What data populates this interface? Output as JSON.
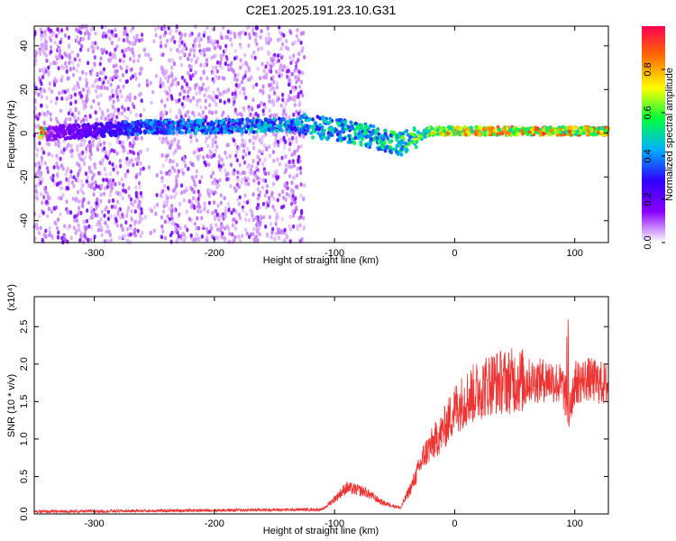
{
  "title": "C2E1.2025.191.23.10.G31",
  "chart_data": [
    {
      "type": "heatmap",
      "xlabel": "Height of straight line (km)",
      "ylabel": "Frequency (Hz)",
      "xlim": [
        -350,
        128
      ],
      "ylim": [
        -50,
        49
      ],
      "xticks": [
        -300,
        -200,
        -100,
        0,
        100
      ],
      "yticks": [
        -40,
        -20,
        0,
        20,
        40
      ],
      "colorbar": {
        "label": "Normalized spectral amplitude",
        "range": [
          0,
          1
        ],
        "ticks": [
          "0.0",
          "0.2",
          "0.4",
          "0.6",
          "0.8"
        ],
        "colors": [
          "#ffffff",
          "#8a00ff",
          "#2f00ff",
          "#00b0ff",
          "#00ff40",
          "#ffff00",
          "#ff7000",
          "#ff0050"
        ]
      },
      "description_of_trace": [
        {
          "x": -340,
          "y": 0,
          "amp": 0.15
        },
        {
          "x": -250,
          "y": 3,
          "amp": 0.45
        },
        {
          "x": -200,
          "y": 3,
          "amp": 0.45
        },
        {
          "x": -130,
          "y": 4,
          "amp": 0.5
        },
        {
          "x": -80,
          "y": 0,
          "amp": 0.55
        },
        {
          "x": -45,
          "y": -5,
          "amp": 0.6
        },
        {
          "x": -20,
          "y": 1,
          "amp": 0.75
        },
        {
          "x": 0,
          "y": 1,
          "amp": 0.85
        },
        {
          "x": 60,
          "y": 1,
          "amp": 0.9
        },
        {
          "x": 128,
          "y": 1,
          "amp": 0.9
        }
      ]
    },
    {
      "type": "line",
      "xlabel": "Height of straight line (km)",
      "ylabel": "SNR (10 * v/v)",
      "scale_note": "(x10⁴)",
      "xlim": [
        -350,
        128
      ],
      "ylim": [
        0,
        2.9
      ],
      "xticks": [
        -300,
        -200,
        -100,
        0,
        100
      ],
      "yticks": [
        "0.0",
        "0.5",
        "1.0",
        "1.5",
        "2.0",
        "2.5"
      ],
      "series_color": "#ee3333",
      "envelope": {
        "x": [
          -350,
          -110,
          -100,
          -90,
          -75,
          -60,
          -45,
          -35,
          -25,
          -10,
          0,
          10,
          30,
          50,
          70,
          80,
          90,
          95,
          100,
          110,
          128
        ],
        "y": [
          0.03,
          0.06,
          0.2,
          0.35,
          0.3,
          0.15,
          0.08,
          0.4,
          0.8,
          1.1,
          1.4,
          1.55,
          1.75,
          1.78,
          1.78,
          1.8,
          1.7,
          1.4,
          1.75,
          1.8,
          1.72
        ]
      }
    }
  ]
}
